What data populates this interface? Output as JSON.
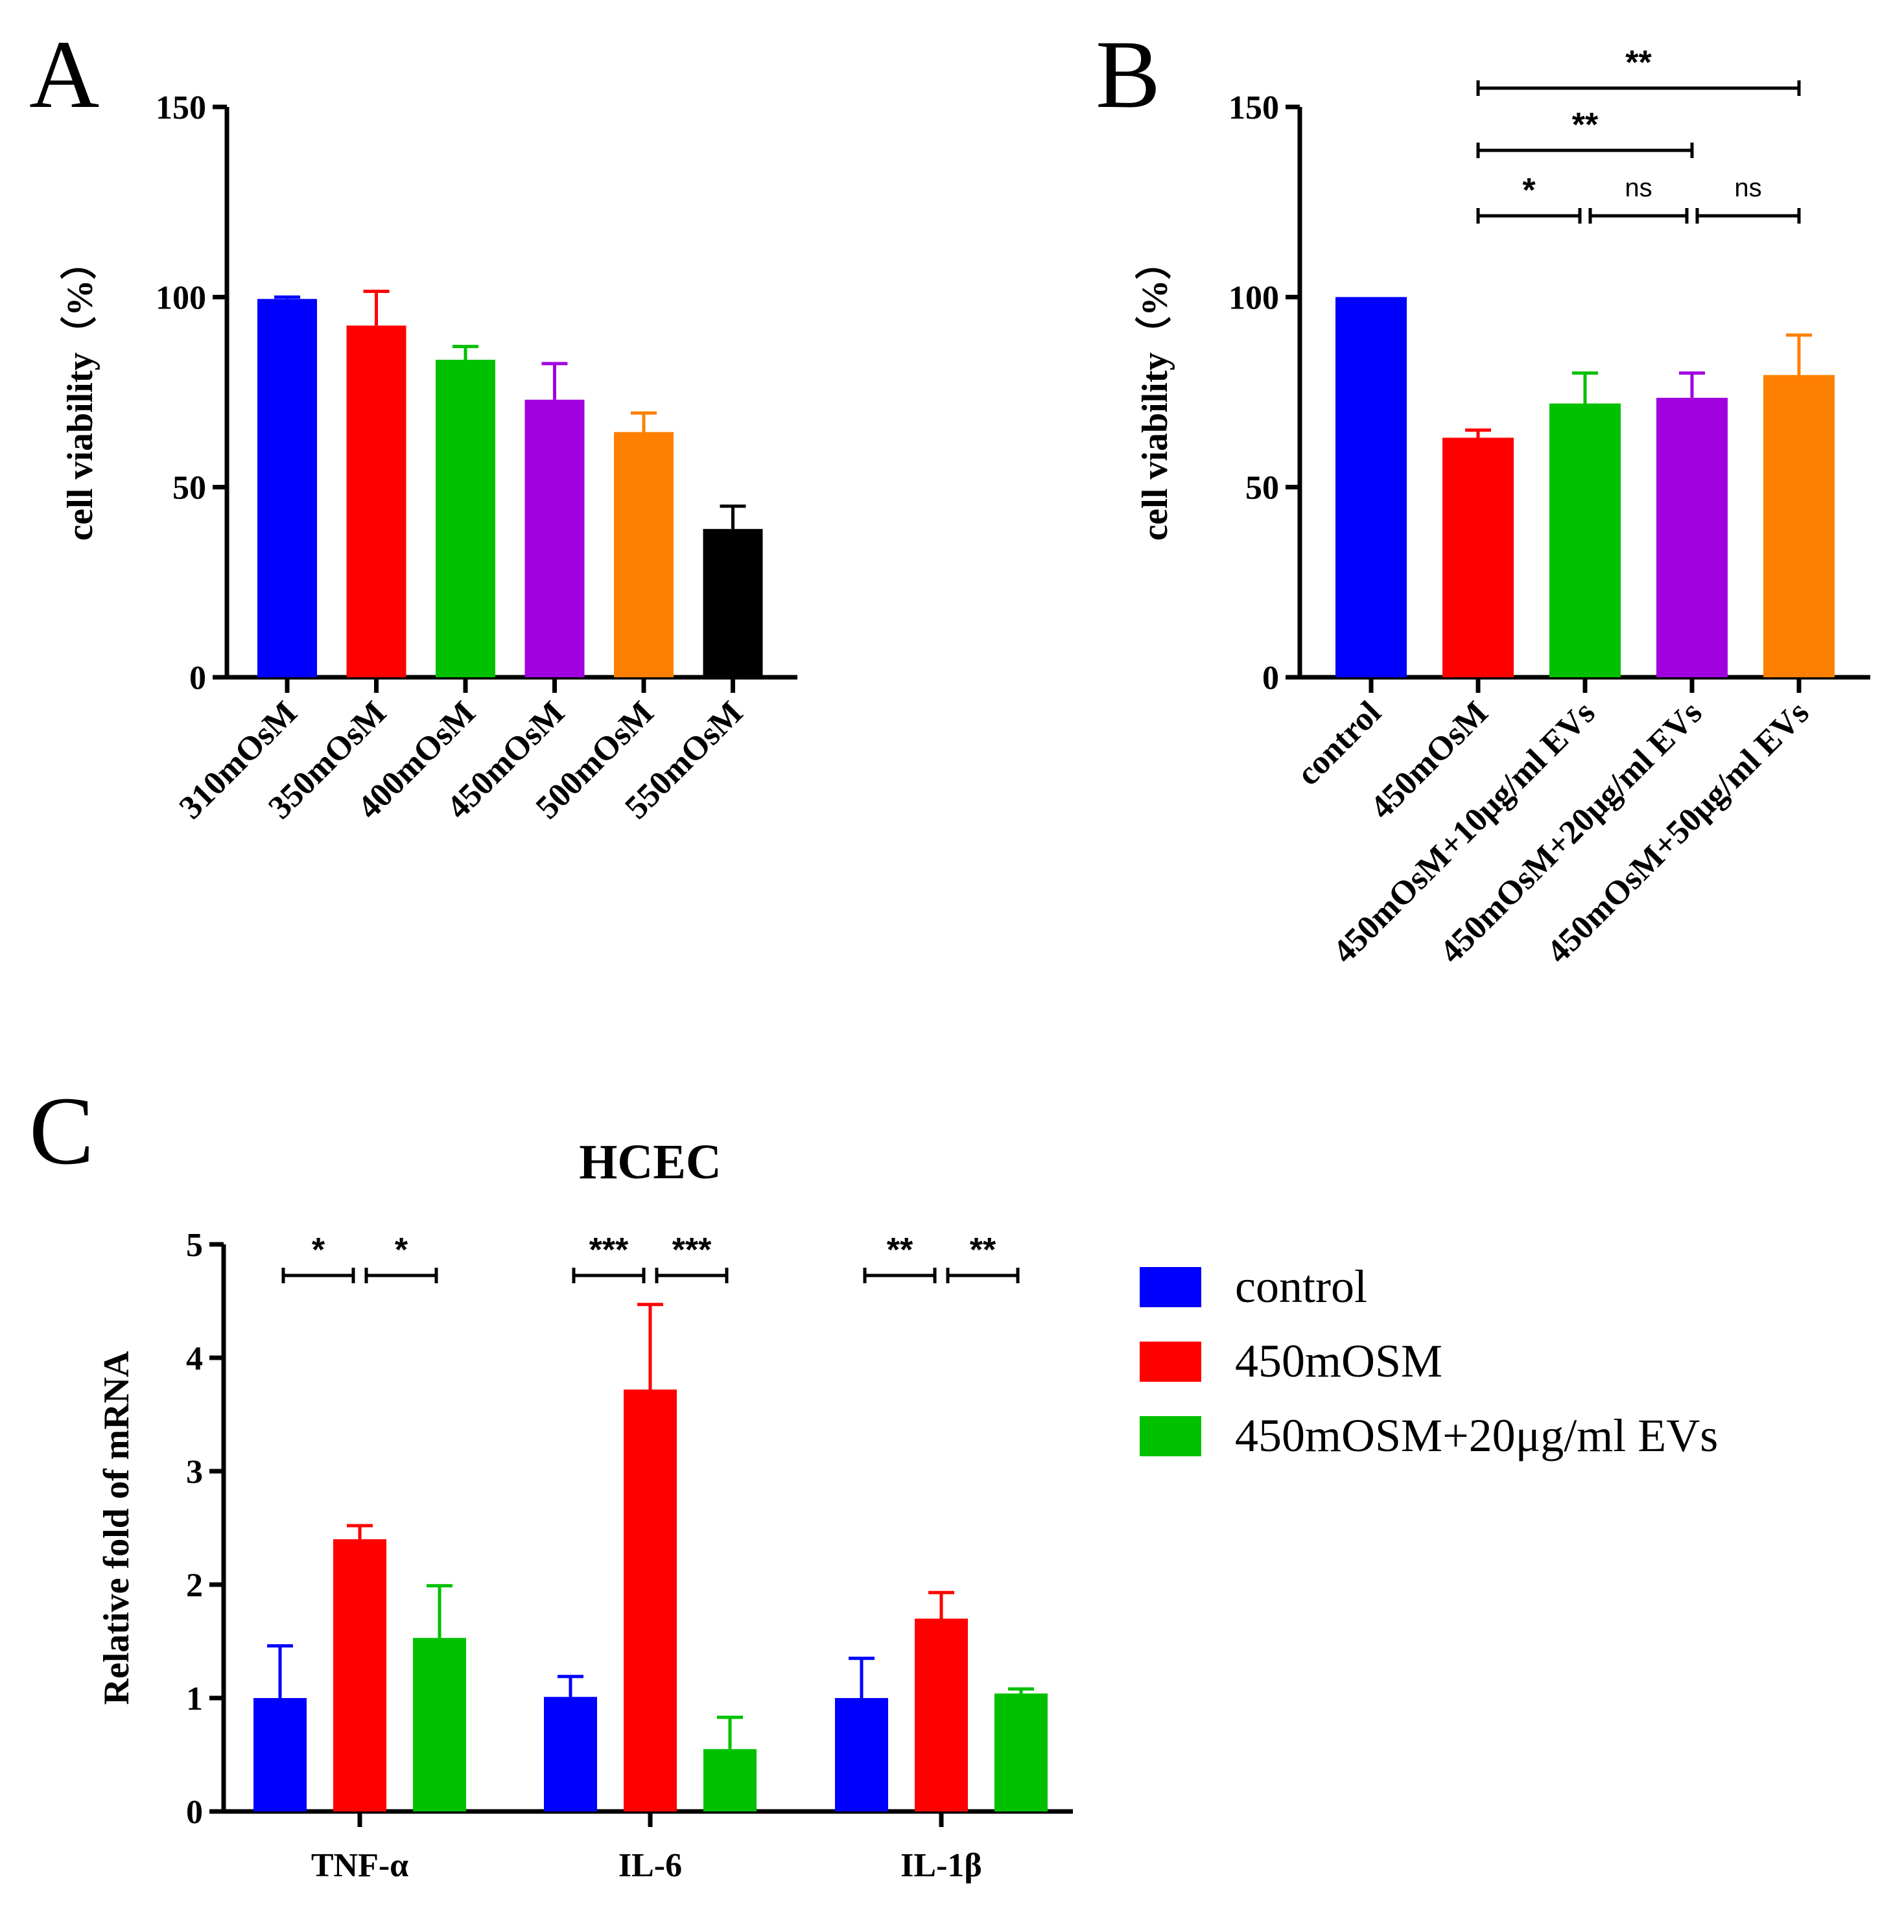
{
  "chart_data": [
    {
      "panel": "A",
      "type": "bar",
      "ylabel": "cell viability（%）",
      "ylim": [
        0,
        150
      ],
      "yticks": [
        0,
        50,
        100,
        150
      ],
      "categories": [
        "310mOsM",
        "350mOsM",
        "400mOsM",
        "450mOsM",
        "500mOsM",
        "550mOsM"
      ],
      "values": [
        99.5,
        92.5,
        83.5,
        73,
        64.5,
        39
      ],
      "errors": [
        0.5,
        9,
        3.5,
        9.5,
        5,
        6
      ],
      "colors": [
        "#0000ff",
        "#ff0000",
        "#00c000",
        "#a000e0",
        "#ff8000",
        "#000000"
      ]
    },
    {
      "panel": "B",
      "type": "bar",
      "ylabel": "cell viability（%）",
      "ylim": [
        0,
        150
      ],
      "yticks": [
        0,
        50,
        100,
        150
      ],
      "categories": [
        "control",
        "450mOsM",
        "450mOsM+10μg/ml EVs",
        "450mOsM+20μg/ml EVs",
        "450mOsM+50μg/ml EVs"
      ],
      "values": [
        100,
        63,
        72,
        73.5,
        79.5
      ],
      "errors": [
        0,
        2,
        8,
        6.5,
        10.5
      ],
      "colors": [
        "#0000ff",
        "#ff0000",
        "#00c000",
        "#a000e0",
        "#ff8000"
      ],
      "significance": [
        {
          "from": 1,
          "to": 4,
          "label": "**"
        },
        {
          "from": 1,
          "to": 3,
          "label": "**"
        },
        {
          "from": 1,
          "to": 2,
          "label": "*"
        },
        {
          "from": 2,
          "to": 3,
          "label": "ns"
        },
        {
          "from": 3,
          "to": 4,
          "label": "ns"
        }
      ]
    },
    {
      "panel": "C",
      "type": "bar",
      "title": "HCEC",
      "ylabel": "Relative fold of mRNA",
      "ylim": [
        0,
        5
      ],
      "yticks": [
        0,
        1,
        2,
        3,
        4,
        5
      ],
      "categories": [
        "TNF-α",
        "IL-6",
        "IL-1β"
      ],
      "series": [
        {
          "name": "control",
          "color": "#0000ff",
          "values": [
            1.0,
            1.01,
            1.0
          ],
          "errors": [
            0.46,
            0.18,
            0.35
          ]
        },
        {
          "name": "450mOSM",
          "color": "#ff0000",
          "values": [
            2.4,
            3.72,
            1.7
          ],
          "errors": [
            0.12,
            0.75,
            0.23
          ]
        },
        {
          "name": "450mOSM+20μg/ml EVs",
          "color": "#00c000",
          "values": [
            1.53,
            0.55,
            1.04
          ],
          "errors": [
            0.46,
            0.28,
            0.04
          ]
        }
      ],
      "significance": [
        {
          "group": 0,
          "pair": "control-450mOSM",
          "label": "*"
        },
        {
          "group": 0,
          "pair": "450mOSM-EVs",
          "label": "*"
        },
        {
          "group": 1,
          "pair": "control-450mOSM",
          "label": "***"
        },
        {
          "group": 1,
          "pair": "450mOSM-EVs",
          "label": "***"
        },
        {
          "group": 2,
          "pair": "control-450mOSM",
          "label": "**"
        },
        {
          "group": 2,
          "pair": "450mOSM-EVs",
          "label": "**"
        }
      ]
    }
  ],
  "panels": {
    "a": {
      "letter": "A"
    },
    "b": {
      "letter": "B"
    },
    "c": {
      "letter": "C"
    }
  }
}
